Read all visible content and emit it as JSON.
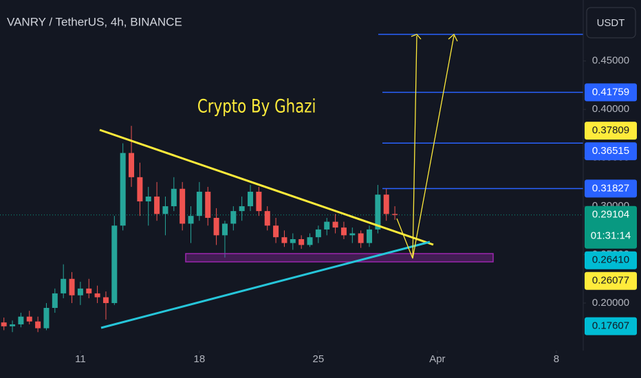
{
  "chart_data": {
    "type": "candlestick",
    "title": "VANRY / TetherUS, 4h, BINANCE",
    "currency_button": "USDT",
    "annotation": "Crypto By Ghazi",
    "countdown": "01:31:14",
    "up_color": "#26a69a",
    "down_color": "#ef5350",
    "x": [
      6.5,
      7,
      7.5,
      8,
      8.5,
      9,
      9.5,
      10,
      10.5,
      11,
      11.5,
      12,
      12.5,
      13,
      13.5,
      14,
      14.5,
      15,
      15.5,
      16,
      16.5,
      17,
      17.5,
      18,
      18.5,
      19,
      19.5,
      20,
      20.5,
      21,
      21.5,
      22,
      22.5,
      23,
      23.5,
      24,
      24.5,
      25,
      25.5,
      26,
      26.5,
      27,
      27.5,
      28,
      28.5,
      29,
      29.5
    ],
    "open": [
      0.18,
      0.176,
      0.178,
      0.186,
      0.181,
      0.174,
      0.195,
      0.21,
      0.225,
      0.208,
      0.215,
      0.21,
      0.206,
      0.2,
      0.28,
      0.355,
      0.33,
      0.305,
      0.31,
      0.292,
      0.3,
      0.318,
      0.282,
      0.29,
      0.315,
      0.288,
      0.27,
      0.282,
      0.295,
      0.3,
      0.315,
      0.295,
      0.28,
      0.268,
      0.262,
      0.266,
      0.26,
      0.268,
      0.276,
      0.284,
      0.278,
      0.27,
      0.272,
      0.262,
      0.276,
      0.312,
      0.292
    ],
    "high": [
      0.185,
      0.182,
      0.19,
      0.192,
      0.186,
      0.2,
      0.215,
      0.24,
      0.232,
      0.222,
      0.225,
      0.218,
      0.212,
      0.29,
      0.365,
      0.383,
      0.345,
      0.32,
      0.325,
      0.31,
      0.33,
      0.325,
      0.3,
      0.325,
      0.32,
      0.298,
      0.285,
      0.3,
      0.31,
      0.322,
      0.32,
      0.3,
      0.288,
      0.275,
      0.272,
      0.27,
      0.272,
      0.28,
      0.288,
      0.292,
      0.284,
      0.278,
      0.275,
      0.28,
      0.322,
      0.318,
      0.3
    ],
    "low": [
      0.172,
      0.17,
      0.175,
      0.178,
      0.17,
      0.172,
      0.19,
      0.205,
      0.2,
      0.198,
      0.205,
      0.2,
      0.183,
      0.198,
      0.275,
      0.32,
      0.29,
      0.28,
      0.285,
      0.27,
      0.295,
      0.275,
      0.262,
      0.285,
      0.28,
      0.26,
      0.247,
      0.275,
      0.285,
      0.295,
      0.29,
      0.275,
      0.262,
      0.258,
      0.255,
      0.256,
      0.258,
      0.262,
      0.27,
      0.272,
      0.266,
      0.262,
      0.257,
      0.258,
      0.272,
      0.285,
      0.286
    ],
    "close": [
      0.176,
      0.178,
      0.186,
      0.181,
      0.174,
      0.195,
      0.21,
      0.225,
      0.208,
      0.215,
      0.21,
      0.206,
      0.2,
      0.28,
      0.355,
      0.33,
      0.305,
      0.31,
      0.292,
      0.3,
      0.318,
      0.282,
      0.29,
      0.315,
      0.288,
      0.27,
      0.282,
      0.295,
      0.3,
      0.315,
      0.295,
      0.28,
      0.268,
      0.262,
      0.266,
      0.26,
      0.268,
      0.276,
      0.284,
      0.278,
      0.27,
      0.272,
      0.262,
      0.276,
      0.312,
      0.292,
      0.291
    ],
    "xlim": [
      6.27,
      40.26
    ],
    "xticks": [
      11,
      18,
      25,
      {
        "value": 32,
        "label": "Apr"
      },
      {
        "value": 39,
        "label": "8"
      }
    ],
    "ylim": [
      0.151,
      0.513
    ],
    "yticks": [
      {
        "value": 0.2,
        "label": "0.20000"
      },
      {
        "value": 0.25,
        "label": "0.25000"
      },
      {
        "value": 0.3,
        "label": "0.30000"
      },
      {
        "value": 0.35,
        "label": "0.35000"
      },
      {
        "value": 0.4,
        "label": "0.40000"
      },
      {
        "value": 0.45,
        "label": "0.45000"
      }
    ],
    "price_labels": [
      {
        "value": 0.41759,
        "label": "0.41759",
        "color": "#2962ff"
      },
      {
        "value": 0.37809,
        "label": "0.37809",
        "color": "#ffeb3b"
      },
      {
        "value": 0.36515,
        "label": "0.36515",
        "color": "#2962ff"
      },
      {
        "value": 0.31827,
        "label": "0.31827",
        "color": "#2962ff"
      },
      {
        "value": 0.29104,
        "label": "0.29104",
        "color": "#089981"
      },
      {
        "value": 0.2641,
        "label": "0.26410",
        "color": "#00bcd4"
      },
      {
        "value": 0.26077,
        "label": "0.26077",
        "color": "#ffeb3b"
      },
      {
        "value": 0.17607,
        "label": "0.17607",
        "color": "#00bcd4"
      }
    ]
  }
}
